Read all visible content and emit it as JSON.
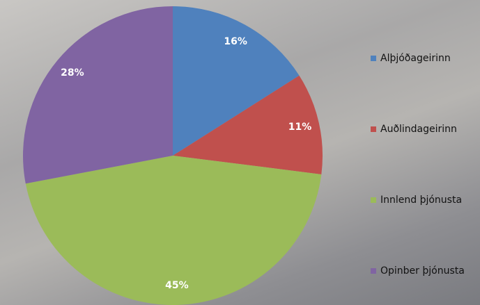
{
  "chart_data": {
    "type": "pie",
    "categories": [
      "Alþjóðageirinn",
      "Auðlindageirinn",
      "Innlend þjónusta",
      "Opinber þjónusta"
    ],
    "values": [
      16,
      11,
      45,
      28
    ],
    "value_labels": [
      "16%",
      "11%",
      "45%",
      "28%"
    ],
    "colors": [
      "#4f81bd",
      "#c0504d",
      "#9bbb59",
      "#8064a2"
    ],
    "legend": "right"
  }
}
